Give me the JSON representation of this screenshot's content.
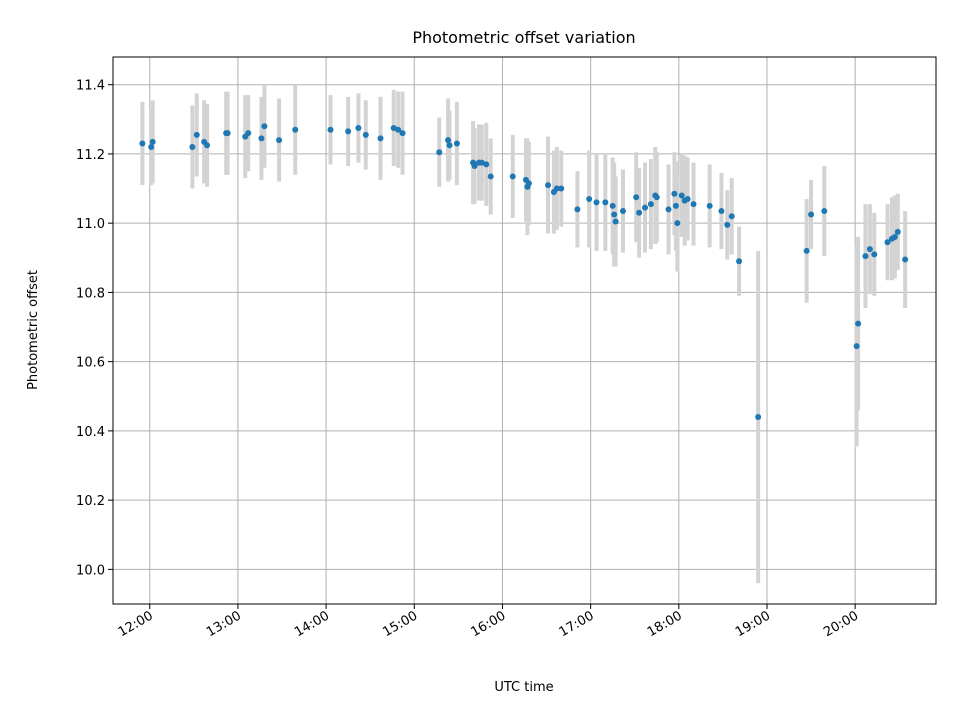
{
  "chart_data": {
    "type": "scatter",
    "title": "Photometric offset variation",
    "xlabel": "UTC time",
    "ylabel": "Photometric offset",
    "grid": true,
    "xlim": [
      "11:35",
      "20:55"
    ],
    "ylim": [
      9.9,
      11.48
    ],
    "x_ticks": [
      "12:00",
      "13:00",
      "14:00",
      "15:00",
      "16:00",
      "17:00",
      "18:00",
      "19:00",
      "20:00"
    ],
    "y_ticks": [
      10.0,
      10.2,
      10.4,
      10.6,
      10.8,
      11.0,
      11.2,
      11.4
    ],
    "y_tick_labels": [
      "10.0",
      "10.2",
      "10.4",
      "10.6",
      "10.8",
      "11.0",
      "11.2",
      "11.4"
    ],
    "colors": {
      "point": "#1f77b4",
      "errorbar": "#d3d3d3"
    },
    "series": [
      {
        "points": [
          {
            "x": "11:55",
            "y": 11.23,
            "err": 0.12
          },
          {
            "x": "12:01",
            "y": 11.22,
            "err": 0.11
          },
          {
            "x": "12:02",
            "y": 11.235,
            "err": 0.12
          },
          {
            "x": "12:29",
            "y": 11.22,
            "err": 0.12
          },
          {
            "x": "12:32",
            "y": 11.255,
            "err": 0.12
          },
          {
            "x": "12:37",
            "y": 11.235,
            "err": 0.12
          },
          {
            "x": "12:39",
            "y": 11.225,
            "err": 0.12
          },
          {
            "x": "12:52",
            "y": 11.26,
            "err": 0.12
          },
          {
            "x": "12:53",
            "y": 11.26,
            "err": 0.12
          },
          {
            "x": "13:05",
            "y": 11.25,
            "err": 0.12
          },
          {
            "x": "13:07",
            "y": 11.26,
            "err": 0.11
          },
          {
            "x": "13:16",
            "y": 11.245,
            "err": 0.12
          },
          {
            "x": "13:18",
            "y": 11.28,
            "err": 0.12
          },
          {
            "x": "13:28",
            "y": 11.24,
            "err": 0.12
          },
          {
            "x": "13:39",
            "y": 11.27,
            "err": 0.13
          },
          {
            "x": "14:03",
            "y": 11.27,
            "err": 0.1
          },
          {
            "x": "14:15",
            "y": 11.265,
            "err": 0.1
          },
          {
            "x": "14:22",
            "y": 11.275,
            "err": 0.1
          },
          {
            "x": "14:27",
            "y": 11.255,
            "err": 0.1
          },
          {
            "x": "14:37",
            "y": 11.245,
            "err": 0.12
          },
          {
            "x": "14:46",
            "y": 11.275,
            "err": 0.11
          },
          {
            "x": "14:49",
            "y": 11.27,
            "err": 0.11
          },
          {
            "x": "14:52",
            "y": 11.26,
            "err": 0.12
          },
          {
            "x": "15:17",
            "y": 11.205,
            "err": 0.1
          },
          {
            "x": "15:23",
            "y": 11.24,
            "err": 0.12
          },
          {
            "x": "15:24",
            "y": 11.225,
            "err": 0.1
          },
          {
            "x": "15:29",
            "y": 11.23,
            "err": 0.12
          },
          {
            "x": "15:40",
            "y": 11.175,
            "err": 0.12
          },
          {
            "x": "15:41",
            "y": 11.165,
            "err": 0.11
          },
          {
            "x": "15:44",
            "y": 11.175,
            "err": 0.11
          },
          {
            "x": "15:46",
            "y": 11.175,
            "err": 0.11
          },
          {
            "x": "15:49",
            "y": 11.17,
            "err": 0.12
          },
          {
            "x": "15:52",
            "y": 11.135,
            "err": 0.11
          },
          {
            "x": "16:07",
            "y": 11.135,
            "err": 0.12
          },
          {
            "x": "16:16",
            "y": 11.125,
            "err": 0.12
          },
          {
            "x": "16:17",
            "y": 11.105,
            "err": 0.14
          },
          {
            "x": "16:18",
            "y": 11.115,
            "err": 0.12
          },
          {
            "x": "16:31",
            "y": 11.11,
            "err": 0.14
          },
          {
            "x": "16:35",
            "y": 11.09,
            "err": 0.12
          },
          {
            "x": "16:37",
            "y": 11.1,
            "err": 0.12
          },
          {
            "x": "16:40",
            "y": 11.1,
            "err": 0.11
          },
          {
            "x": "16:51",
            "y": 11.04,
            "err": 0.11
          },
          {
            "x": "16:59",
            "y": 11.07,
            "err": 0.14
          },
          {
            "x": "17:04",
            "y": 11.06,
            "err": 0.14
          },
          {
            "x": "17:10",
            "y": 11.06,
            "err": 0.14
          },
          {
            "x": "17:15",
            "y": 11.05,
            "err": 0.14
          },
          {
            "x": "17:16",
            "y": 11.025,
            "err": 0.15
          },
          {
            "x": "17:17",
            "y": 11.005,
            "err": 0.13
          },
          {
            "x": "17:22",
            "y": 11.035,
            "err": 0.12
          },
          {
            "x": "17:31",
            "y": 11.075,
            "err": 0.13
          },
          {
            "x": "17:33",
            "y": 11.03,
            "err": 0.13
          },
          {
            "x": "17:37",
            "y": 11.045,
            "err": 0.13
          },
          {
            "x": "17:41",
            "y": 11.055,
            "err": 0.13
          },
          {
            "x": "17:44",
            "y": 11.08,
            "err": 0.14
          },
          {
            "x": "17:45",
            "y": 11.075,
            "err": 0.13
          },
          {
            "x": "17:53",
            "y": 11.04,
            "err": 0.13
          },
          {
            "x": "17:57",
            "y": 11.085,
            "err": 0.12
          },
          {
            "x": "17:58",
            "y": 11.05,
            "err": 0.13
          },
          {
            "x": "17:59",
            "y": 11.0,
            "err": 0.14
          },
          {
            "x": "18:02",
            "y": 11.08,
            "err": 0.12
          },
          {
            "x": "18:04",
            "y": 11.065,
            "err": 0.13
          },
          {
            "x": "18:06",
            "y": 11.07,
            "err": 0.12
          },
          {
            "x": "18:10",
            "y": 11.055,
            "err": 0.12
          },
          {
            "x": "18:21",
            "y": 11.05,
            "err": 0.12
          },
          {
            "x": "18:29",
            "y": 11.035,
            "err": 0.11
          },
          {
            "x": "18:33",
            "y": 10.995,
            "err": 0.1
          },
          {
            "x": "18:36",
            "y": 11.02,
            "err": 0.11
          },
          {
            "x": "18:41",
            "y": 10.89,
            "err": 0.1
          },
          {
            "x": "18:54",
            "y": 10.44,
            "err": 0.48
          },
          {
            "x": "19:27",
            "y": 10.92,
            "err": 0.15
          },
          {
            "x": "19:30",
            "y": 11.025,
            "err": 0.1
          },
          {
            "x": "19:39",
            "y": 11.035,
            "err": 0.13
          },
          {
            "x": "20:01",
            "y": 10.645,
            "err": 0.29
          },
          {
            "x": "20:02",
            "y": 10.71,
            "err": 0.25
          },
          {
            "x": "20:07",
            "y": 10.905,
            "err": 0.15
          },
          {
            "x": "20:10",
            "y": 10.925,
            "err": 0.13
          },
          {
            "x": "20:13",
            "y": 10.91,
            "err": 0.12
          },
          {
            "x": "20:22",
            "y": 10.945,
            "err": 0.11
          },
          {
            "x": "20:25",
            "y": 10.955,
            "err": 0.12
          },
          {
            "x": "20:27",
            "y": 10.96,
            "err": 0.12
          },
          {
            "x": "20:29",
            "y": 10.975,
            "err": 0.11
          },
          {
            "x": "20:34",
            "y": 10.895,
            "err": 0.14
          }
        ]
      }
    ]
  }
}
